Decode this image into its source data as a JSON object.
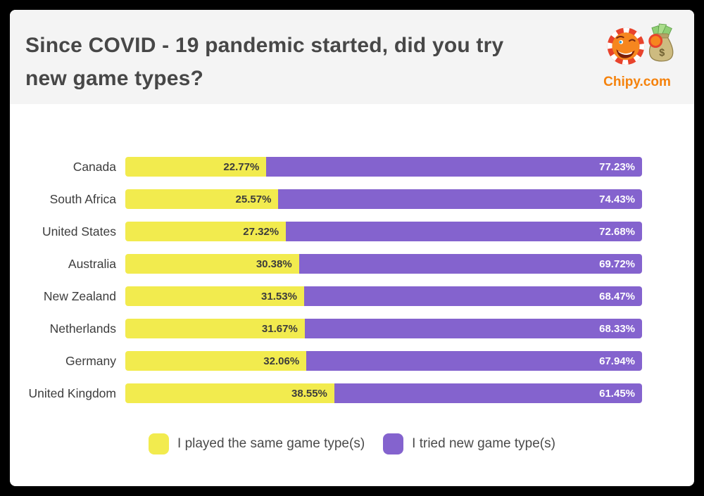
{
  "header": {
    "title_lines": [
      "Since COVID - 19 pandemic started, did you try",
      "new game types?"
    ],
    "logo": {
      "brand": "Chipy.com",
      "icon": "poker-chip-mascot-with-money-bag",
      "brand_color": "#f5820c"
    }
  },
  "chart_data": {
    "type": "bar",
    "orientation": "horizontal-stacked",
    "title": "Since COVID - 19 pandemic started, did you try new game types?",
    "categories": [
      "Canada",
      "South Africa",
      "United States",
      "Australia",
      "New Zealand",
      "Netherlands",
      "Germany",
      "United Kingdom"
    ],
    "series": [
      {
        "name": "I played the same game type(s)",
        "color": "#f2eb4e",
        "label_color": "#3c3c3c",
        "values": [
          22.77,
          25.57,
          27.32,
          30.38,
          31.53,
          31.67,
          32.06,
          38.55
        ]
      },
      {
        "name": "I tried new game type(s)",
        "color": "#8463ce",
        "label_color": "#ffffff",
        "values": [
          77.23,
          74.43,
          72.68,
          69.72,
          68.47,
          68.33,
          67.94,
          61.45
        ]
      }
    ],
    "value_format": "percent-2dp",
    "xlim": [
      0,
      100
    ],
    "grid": false,
    "legend_position": "bottom"
  },
  "colors": {
    "page_background": "#000000",
    "card_background": "#ffffff",
    "header_background": "#f4f4f4",
    "title_text": "#474747",
    "country_label_text": "#3d3d3d",
    "legend_text": "#4a4a4a"
  }
}
